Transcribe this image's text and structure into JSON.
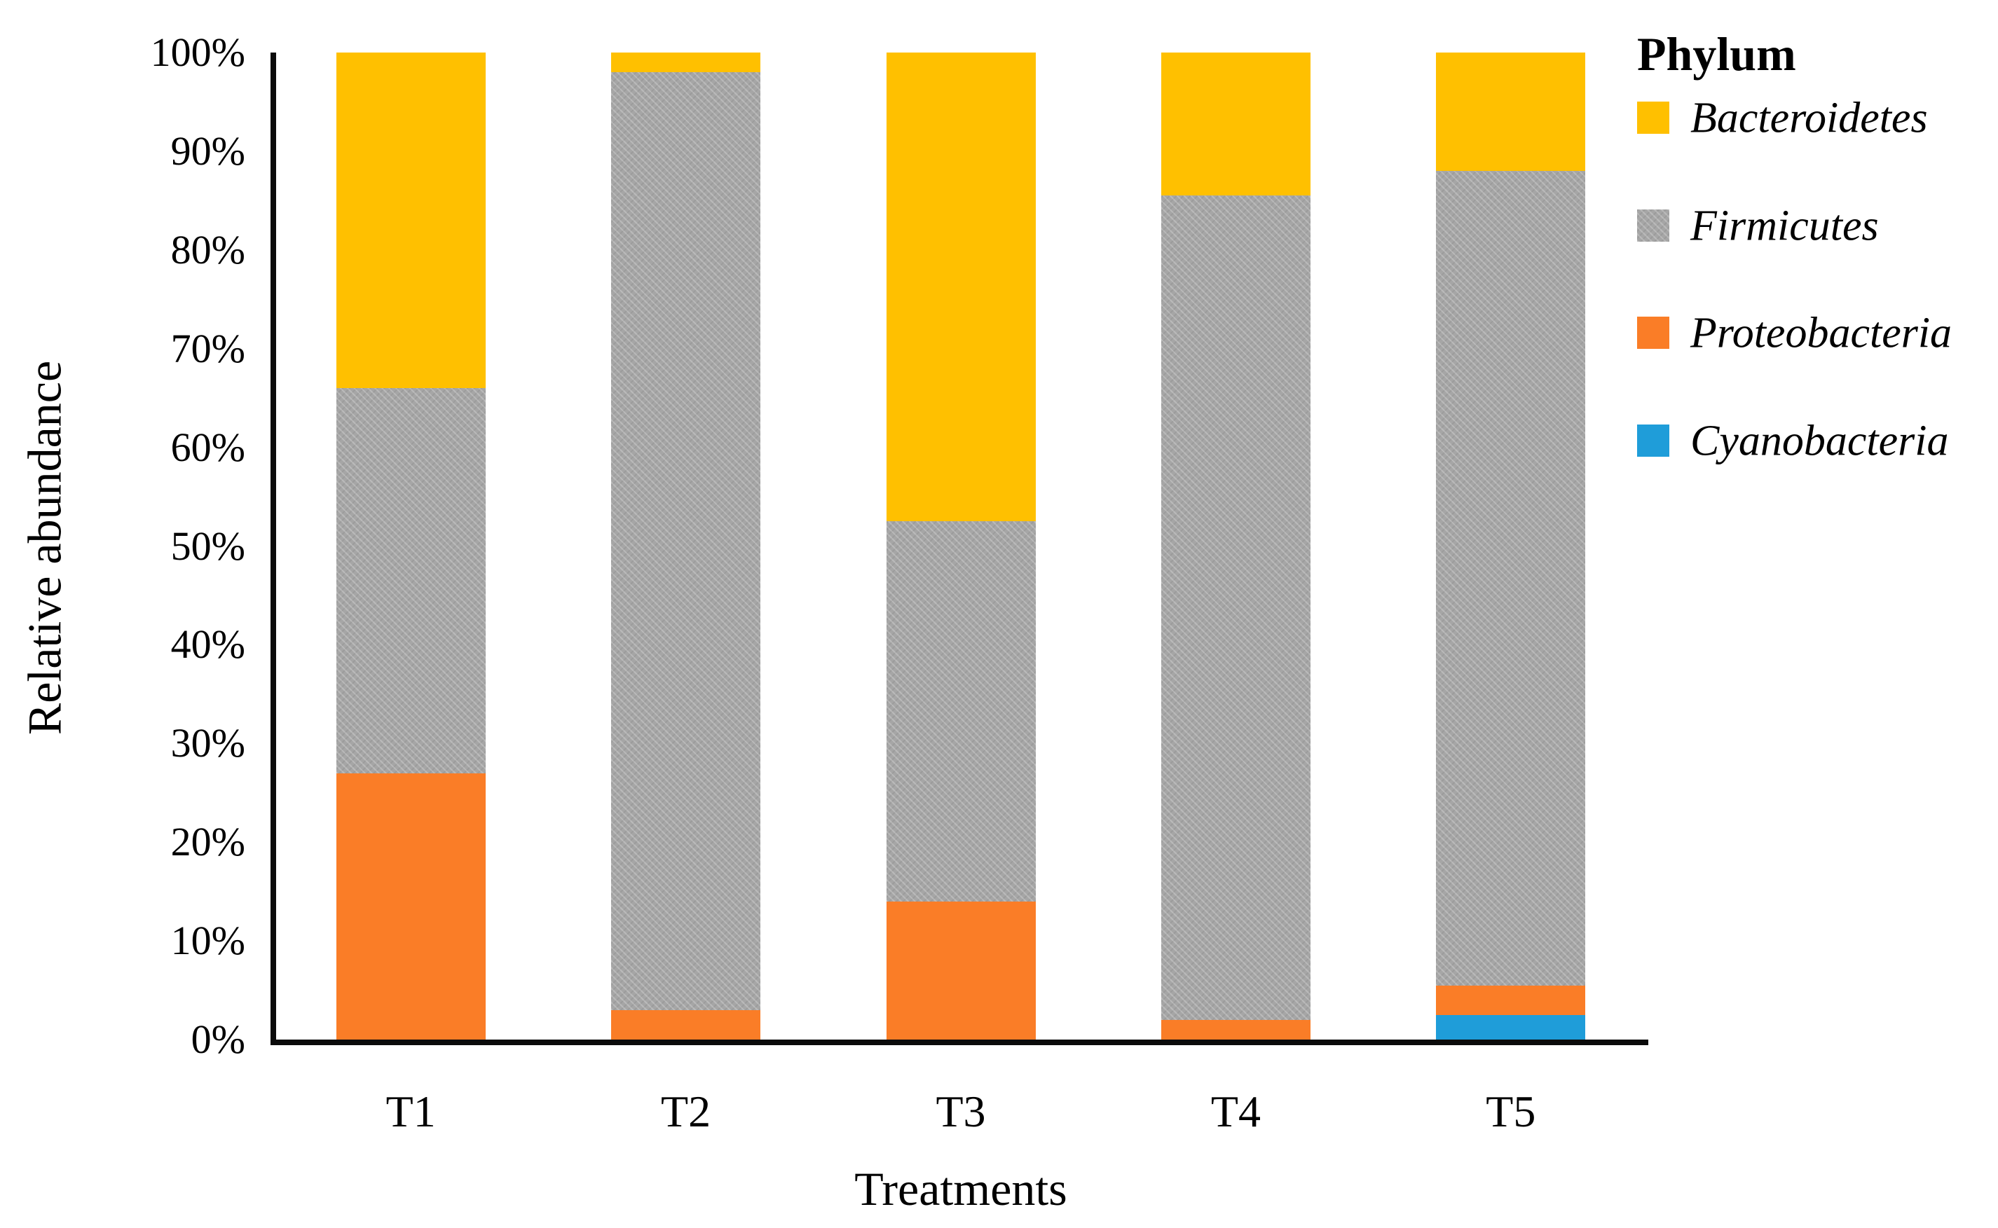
{
  "chart_data": {
    "type": "bar",
    "stacked": true,
    "categories": [
      "T1",
      "T2",
      "T3",
      "T4",
      "T5"
    ],
    "series": [
      {
        "name": "Cyanobacteria",
        "color": "#1F9DD9",
        "values": [
          0,
          0,
          0,
          0,
          2.5
        ]
      },
      {
        "name": "Proteobacteria",
        "color": "#FA7D27",
        "values": [
          27,
          3,
          14,
          2,
          3
        ]
      },
      {
        "name": "Firmicutes",
        "color": "#A6A6A6",
        "pattern": "dotted",
        "values": [
          39,
          95,
          38.5,
          83.5,
          82.5
        ]
      },
      {
        "name": "Bacteroidetes",
        "color": "#FFC000",
        "values": [
          34,
          2,
          47.5,
          14.5,
          12
        ]
      }
    ],
    "xlabel": "Treatments",
    "ylabel": "Relative abundance",
    "y_ticks": [
      "0%",
      "10%",
      "20%",
      "30%",
      "40%",
      "50%",
      "60%",
      "70%",
      "80%",
      "90%",
      "100%"
    ],
    "ylim": [
      0,
      100
    ],
    "grid": false,
    "legend": {
      "title": "Phylum",
      "position": "right",
      "entries": [
        "Bacteroidetes",
        "Firmicutes",
        "Proteobacteria",
        "Cyanobacteria"
      ]
    },
    "axis_color": "#0b0b0b",
    "text_color": "#000000"
  }
}
